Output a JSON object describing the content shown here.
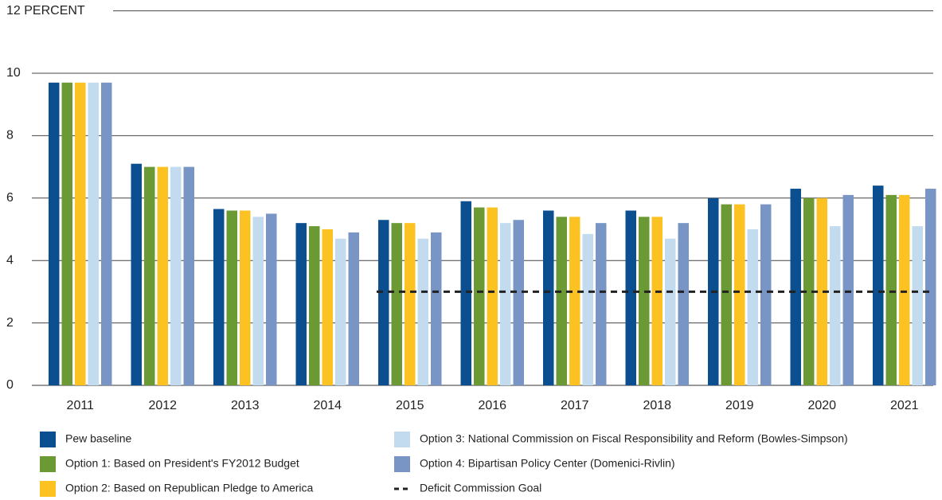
{
  "chart_data": {
    "type": "bar",
    "categories": [
      "2011",
      "2012",
      "2013",
      "2014",
      "2015",
      "2016",
      "2017",
      "2018",
      "2019",
      "2020",
      "2021"
    ],
    "series": [
      {
        "name": "Pew baseline",
        "color": "#0b4f91",
        "values": [
          9.7,
          7.1,
          5.65,
          5.2,
          5.3,
          5.9,
          5.6,
          5.6,
          6.0,
          6.3,
          6.4
        ]
      },
      {
        "name": "Option 1: Based on President's FY2012 Budget",
        "color": "#6b9a35",
        "values": [
          9.7,
          7.0,
          5.6,
          5.1,
          5.2,
          5.7,
          5.4,
          5.4,
          5.8,
          6.0,
          6.1
        ]
      },
      {
        "name": "Option 2: Based on Republican Pledge to America",
        "color": "#fcc221",
        "values": [
          9.7,
          7.0,
          5.6,
          5.0,
          5.2,
          5.7,
          5.4,
          5.4,
          5.8,
          6.0,
          6.1
        ]
      },
      {
        "name": "Option 3: National Commission on Fiscal Responsibility and Reform (Bowles-Simpson)",
        "color": "#c3dbef",
        "values": [
          9.7,
          7.0,
          5.4,
          4.7,
          4.7,
          5.2,
          4.85,
          4.7,
          5.0,
          5.1,
          5.1
        ]
      },
      {
        "name": "Option 4: Bipartisan Policy Center (Domenici-Rivlin)",
        "color": "#7895c5",
        "values": [
          9.7,
          7.0,
          5.5,
          4.9,
          4.9,
          5.3,
          5.2,
          5.2,
          5.8,
          6.1,
          6.3
        ]
      }
    ],
    "lines": [
      {
        "name": "Deficit Commission Goal",
        "color": "#222222",
        "values": [
          null,
          null,
          null,
          null,
          3,
          3,
          3,
          3,
          3,
          3,
          3
        ]
      }
    ],
    "ylim": [
      0,
      12
    ],
    "yticks": [
      0,
      2,
      4,
      6,
      8,
      10,
      {
        "value": 12,
        "label": "12 PERCENT"
      }
    ],
    "grid": true
  }
}
